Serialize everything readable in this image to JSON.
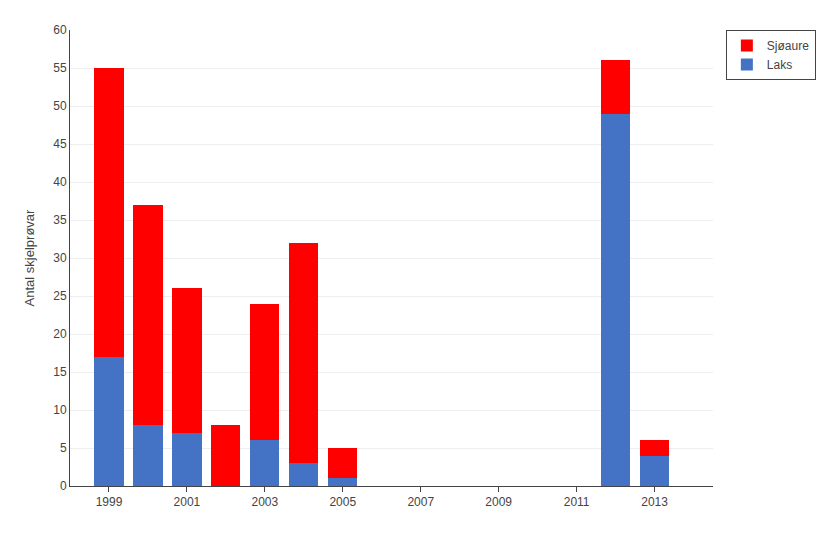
{
  "chart_data": {
    "type": "bar",
    "stacked": true,
    "x": [
      1999,
      2000,
      2001,
      2002,
      2003,
      2004,
      2005,
      2012,
      2013
    ],
    "series": [
      {
        "name": "Laks",
        "color": "#4472C4",
        "values": [
          17,
          8,
          7,
          0,
          6,
          3,
          1,
          49,
          4
        ]
      },
      {
        "name": "Sjøaure",
        "color": "#FF0000",
        "values": [
          38,
          29,
          19,
          8,
          18,
          29,
          4,
          7,
          2
        ]
      }
    ],
    "ylabel": "Antal skjelprøvar",
    "xlim": [
      1998,
      2014.5
    ],
    "xticks": [
      1999,
      2001,
      2003,
      2005,
      2007,
      2009,
      2011,
      2013
    ],
    "ylim": [
      0,
      60
    ],
    "yticks": [
      0,
      5,
      10,
      15,
      20,
      25,
      30,
      35,
      40,
      45,
      50,
      55,
      60
    ],
    "grid": true,
    "legend": "upper right"
  }
}
